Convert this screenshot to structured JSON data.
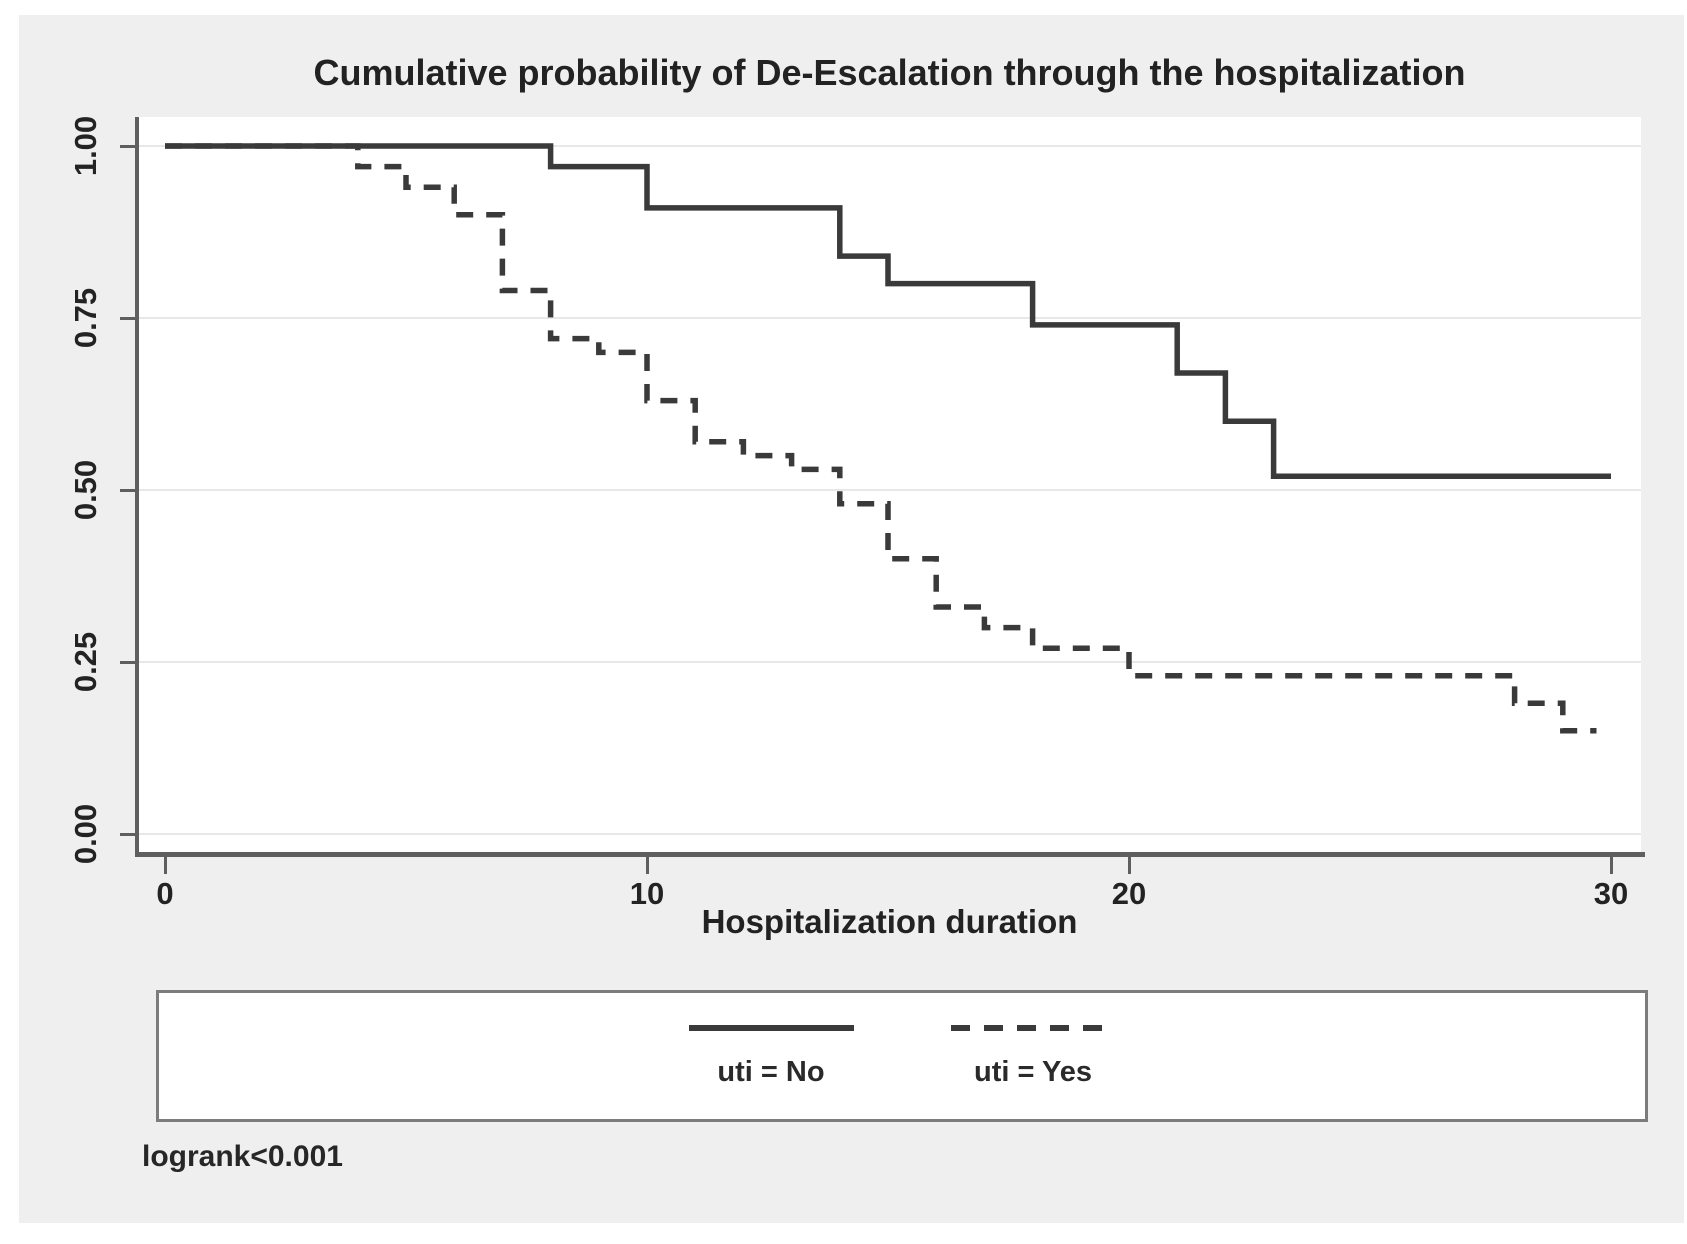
{
  "figure": {
    "title": "Cumulative probability of De-Escalation through the hospitalization",
    "x_axis_title": "Hospitalization duration",
    "footnote": "logrank<0.001"
  },
  "legend": {
    "entries": [
      {
        "label": "uti = No",
        "line_style": "solid"
      },
      {
        "label": "uti = Yes",
        "line_style": "dashed"
      }
    ]
  },
  "colors": {
    "figure_bg": "#efefef",
    "plot_bg": "#ffffff",
    "grid": "#e8e8e8",
    "axis": "#5f5f5f",
    "curve": "#3a3a3a",
    "text": "#222222",
    "legend_border": "#7c7c7c"
  },
  "chart_data": {
    "type": "line",
    "subtype": "kaplan-meier-step",
    "title": "Cumulative probability of De-Escalation through the hospitalization",
    "xlabel": "Hospitalization duration",
    "ylabel": "",
    "xlim": [
      0,
      30
    ],
    "ylim": [
      0,
      1
    ],
    "grid": "horizontal",
    "legend_position": "bottom-box",
    "annotation": "logrank<0.001",
    "xticks": [
      {
        "value": 0,
        "label": "0"
      },
      {
        "value": 10,
        "label": "10"
      },
      {
        "value": 20,
        "label": "20"
      },
      {
        "value": 30,
        "label": "30"
      }
    ],
    "yticks": [
      {
        "value": 0.0,
        "label": "0.00"
      },
      {
        "value": 0.25,
        "label": "0.25"
      },
      {
        "value": 0.5,
        "label": "0.50"
      },
      {
        "value": 0.75,
        "label": "0.75"
      },
      {
        "value": 1.0,
        "label": "1.00"
      }
    ],
    "series": [
      {
        "name": "uti = No",
        "line_style": "solid",
        "color": "#3a3a3a",
        "steps": [
          [
            0,
            1.0
          ],
          [
            8,
            0.97
          ],
          [
            10,
            0.91
          ],
          [
            14,
            0.84
          ],
          [
            15,
            0.8
          ],
          [
            18,
            0.74
          ],
          [
            21,
            0.67
          ],
          [
            22,
            0.6
          ],
          [
            23,
            0.52
          ]
        ],
        "end_x": 30
      },
      {
        "name": "uti = Yes",
        "line_style": "dashed",
        "color": "#3a3a3a",
        "steps": [
          [
            0,
            1.0
          ],
          [
            4,
            0.97
          ],
          [
            5,
            0.94
          ],
          [
            6,
            0.9
          ],
          [
            7,
            0.79
          ],
          [
            8,
            0.72
          ],
          [
            9,
            0.7
          ],
          [
            10,
            0.63
          ],
          [
            11,
            0.57
          ],
          [
            12,
            0.55
          ],
          [
            13,
            0.53
          ],
          [
            14,
            0.48
          ],
          [
            15,
            0.4
          ],
          [
            16,
            0.33
          ],
          [
            17,
            0.3
          ],
          [
            18,
            0.27
          ],
          [
            20,
            0.23
          ],
          [
            28,
            0.19
          ],
          [
            29,
            0.15
          ]
        ],
        "end_x": 29.7
      }
    ]
  }
}
